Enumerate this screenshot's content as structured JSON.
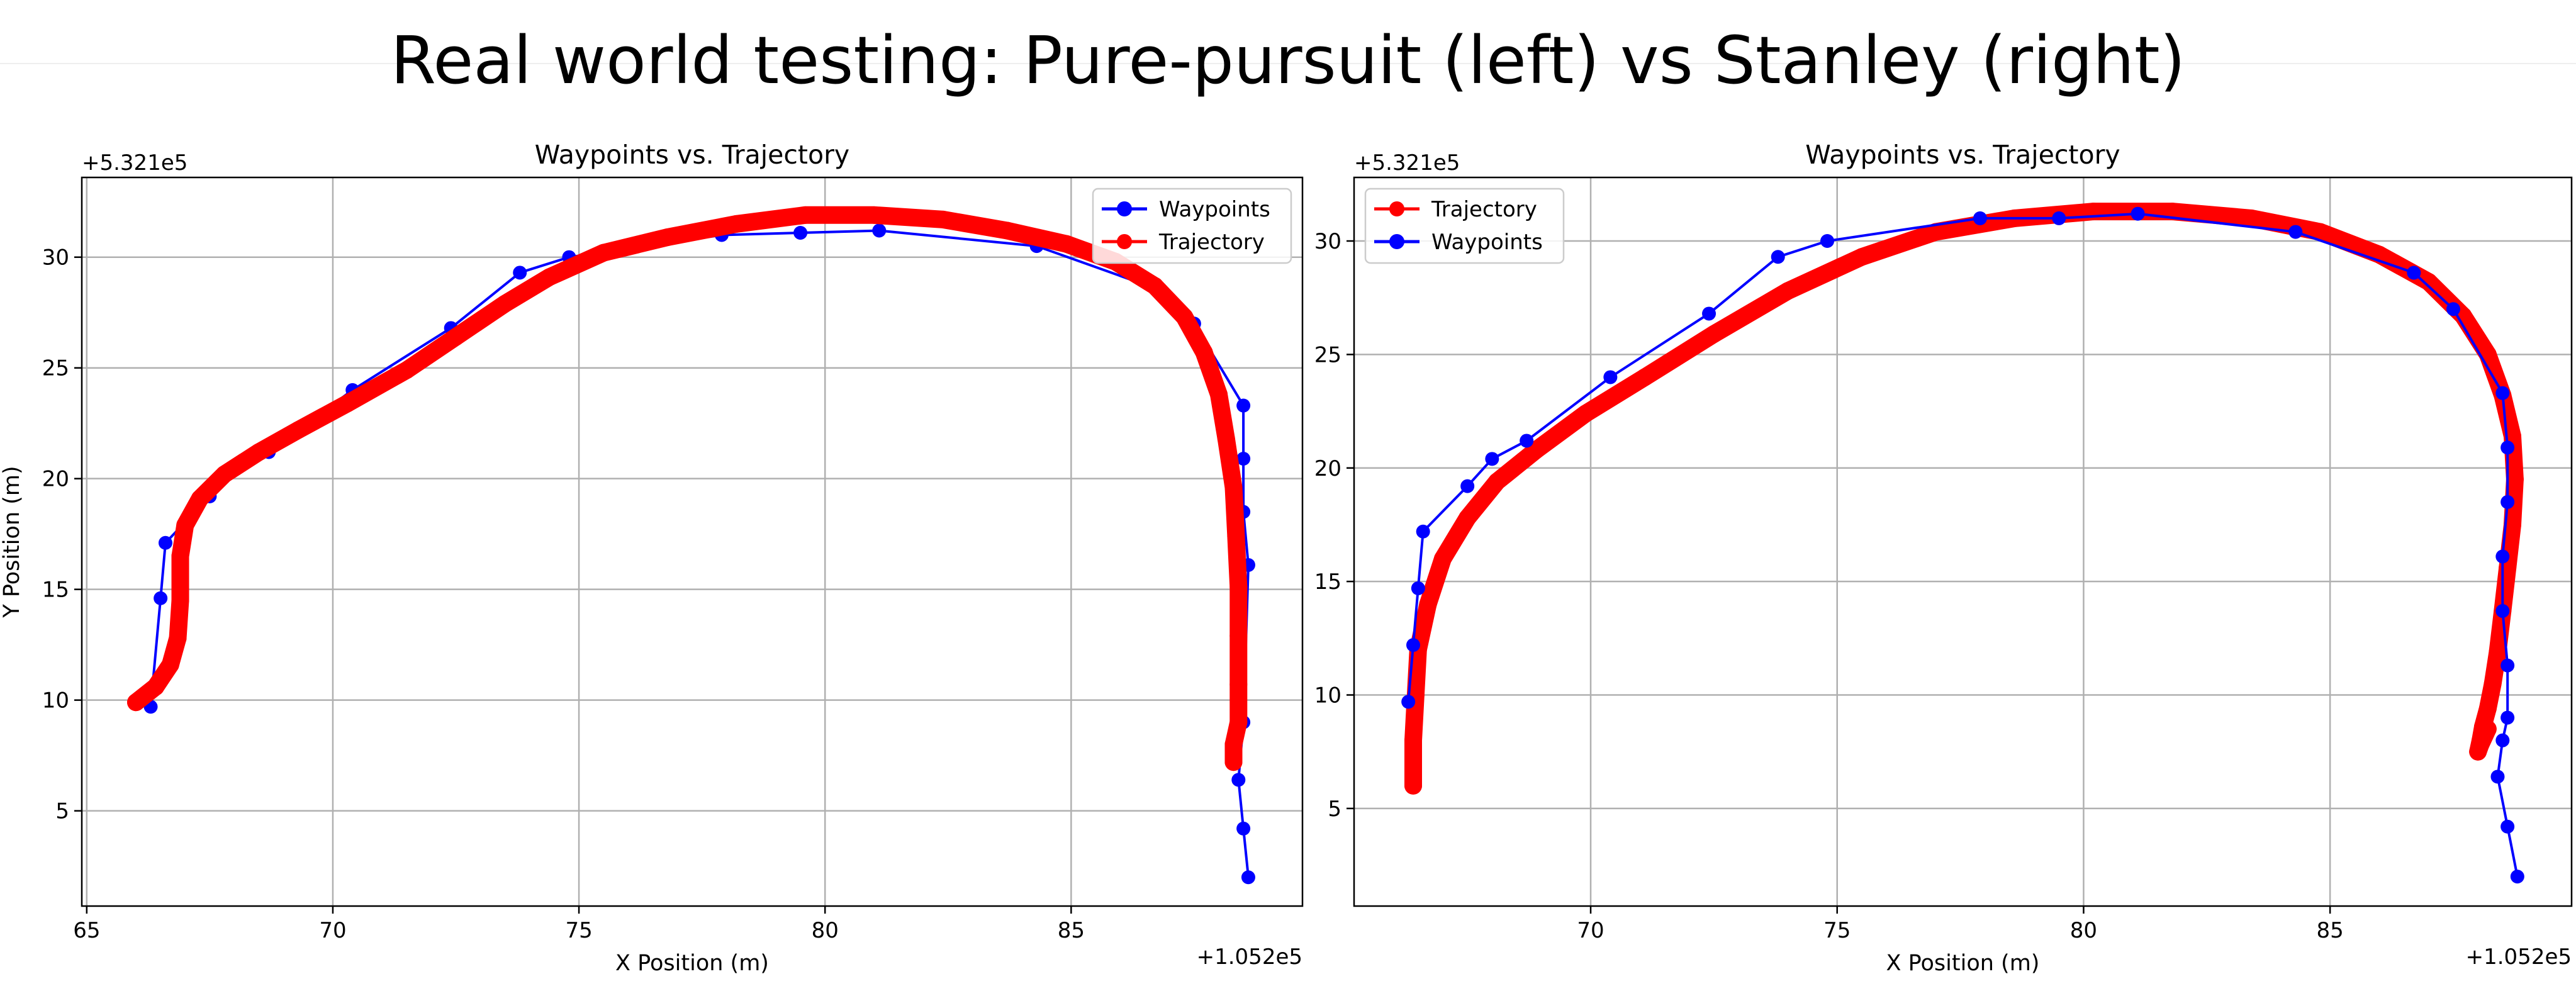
{
  "page_title": "Real world testing: Pure-pursuit (left) vs Stanley (right)",
  "colors": {
    "waypoints": "#0000ff",
    "trajectory": "#ff0000",
    "grid": "#b0b0b0"
  },
  "chart_data": [
    {
      "type": "line",
      "title": "Waypoints vs. Trajectory",
      "xlabel": "X Position (m)",
      "ylabel": "Y Position (m)",
      "x_offset_label": "+1.052e5",
      "y_offset_label": "+5.321e5",
      "xlim": [
        64.9,
        89.7
      ],
      "ylim": [
        0.7,
        33.6
      ],
      "xticks": [
        65,
        70,
        75,
        80,
        85
      ],
      "yticks": [
        5,
        10,
        15,
        20,
        25,
        30
      ],
      "grid": true,
      "legend_position": "top-right",
      "legend": [
        "Waypoints",
        "Trajectory"
      ],
      "series": [
        {
          "name": "Waypoints",
          "marker": "circle",
          "x": [
            66.3,
            66.5,
            66.6,
            67.5,
            68.0,
            68.7,
            70.4,
            72.4,
            73.8,
            74.8,
            77.9,
            79.5,
            81.1,
            84.3,
            86.7,
            87.5,
            88.5,
            88.5,
            88.5,
            88.6,
            88.5,
            88.4,
            88.5,
            88.6
          ],
          "y": [
            9.7,
            14.6,
            17.1,
            19.2,
            20.4,
            21.2,
            24.0,
            26.8,
            29.3,
            30.0,
            31.0,
            31.1,
            31.2,
            30.5,
            28.6,
            27.0,
            23.3,
            20.9,
            18.5,
            16.1,
            9.0,
            6.4,
            4.2,
            2.0
          ]
        },
        {
          "name": "Trajectory",
          "marker": "circle",
          "x": [
            66.0,
            66.4,
            66.7,
            66.85,
            66.9,
            66.9,
            67.0,
            67.3,
            67.8,
            68.5,
            69.3,
            70.3,
            71.5,
            72.5,
            73.5,
            74.4,
            75.5,
            76.8,
            78.2,
            79.6,
            81.0,
            82.4,
            83.7,
            84.9,
            85.9,
            86.7,
            87.3,
            87.7,
            88.0,
            88.15,
            88.3,
            88.35,
            88.4,
            88.4,
            88.4,
            88.4,
            88.3,
            88.3
          ],
          "y": [
            9.9,
            10.6,
            11.6,
            12.8,
            14.5,
            16.5,
            17.9,
            19.1,
            20.2,
            21.2,
            22.2,
            23.4,
            24.9,
            26.4,
            27.9,
            29.1,
            30.2,
            30.9,
            31.5,
            31.9,
            31.9,
            31.7,
            31.2,
            30.6,
            29.8,
            28.7,
            27.3,
            25.7,
            23.8,
            21.8,
            19.6,
            17.4,
            15.1,
            12.9,
            10.7,
            9.0,
            8.0,
            7.2
          ]
        }
      ]
    },
    {
      "type": "line",
      "title": "Waypoints vs. Trajectory",
      "xlabel": "X Position (m)",
      "ylabel": "",
      "x_offset_label": "+1.052e5",
      "y_offset_label": "+5.321e5",
      "xlim": [
        65.2,
        89.9
      ],
      "ylim": [
        0.7,
        32.8
      ],
      "xticks": [
        70,
        75,
        80,
        85
      ],
      "yticks": [
        5,
        10,
        15,
        20,
        25,
        30
      ],
      "grid": true,
      "legend_position": "top-left",
      "legend": [
        "Trajectory",
        "Waypoints"
      ],
      "series": [
        {
          "name": "Trajectory",
          "marker": "circle",
          "x": [
            66.4,
            66.4,
            66.45,
            66.5,
            66.7,
            67.0,
            67.5,
            68.1,
            68.9,
            69.9,
            71.1,
            72.5,
            74.0,
            75.5,
            77.0,
            78.6,
            80.2,
            81.8,
            83.4,
            84.8,
            86.0,
            87.0,
            87.7,
            88.2,
            88.5,
            88.7,
            88.75,
            88.7,
            88.6,
            88.5,
            88.4,
            88.3,
            88.2,
            88.1,
            88.05,
            88.0,
            88.05,
            88.2
          ],
          "y": [
            6.0,
            8.0,
            10.0,
            12.0,
            14.0,
            16.0,
            17.8,
            19.4,
            20.8,
            22.4,
            24.0,
            25.9,
            27.8,
            29.3,
            30.4,
            31.0,
            31.3,
            31.3,
            31.0,
            30.4,
            29.4,
            28.2,
            26.7,
            25.0,
            23.2,
            21.4,
            19.5,
            17.5,
            15.6,
            13.7,
            11.9,
            10.5,
            9.4,
            8.6,
            8.0,
            7.5,
            7.8,
            8.5
          ]
        },
        {
          "name": "Waypoints",
          "marker": "circle",
          "x": [
            66.3,
            66.4,
            66.5,
            66.6,
            67.5,
            68.0,
            68.7,
            70.4,
            72.4,
            73.8,
            74.8,
            77.9,
            79.5,
            81.1,
            84.3,
            86.7,
            87.5,
            88.5,
            88.6,
            88.6,
            88.5,
            88.5,
            88.6,
            88.6,
            88.5,
            88.4,
            88.6,
            88.8
          ],
          "y": [
            9.7,
            12.2,
            14.7,
            17.2,
            19.2,
            20.4,
            21.2,
            24.0,
            26.8,
            29.3,
            30.0,
            31.0,
            31.0,
            31.2,
            30.4,
            28.6,
            27.0,
            23.3,
            20.9,
            18.5,
            16.1,
            13.7,
            11.3,
            9.0,
            8.0,
            6.4,
            4.2,
            2.0
          ]
        }
      ]
    }
  ]
}
